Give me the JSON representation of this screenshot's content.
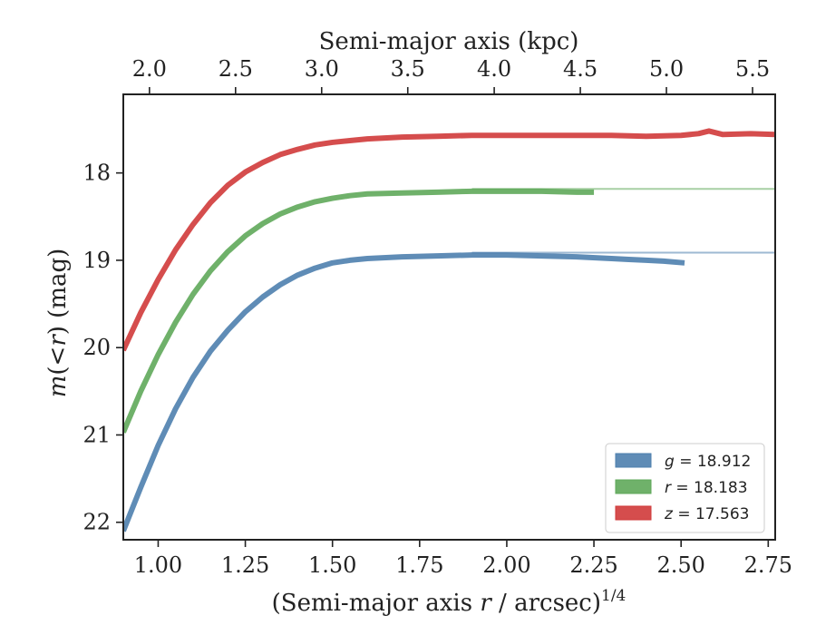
{
  "chart_data": {
    "type": "line",
    "xlabel_prefix": "(Semi-major axis ",
    "xlabel_var": "r",
    "xlabel_suffix": " / arcsec)",
    "xlabel_exp": "1/4",
    "ylabel_m": "m",
    "ylabel_mid": "(<",
    "ylabel_r": "r",
    "ylabel_suffix": ") (mag)",
    "top_xlabel": "Semi-major axis (kpc)",
    "xlim": [
      0.9,
      2.77
    ],
    "ylim": [
      22.2,
      17.1
    ],
    "y_inverted": true,
    "xticks": [
      "1.00",
      "1.25",
      "1.50",
      "1.75",
      "2.00",
      "2.25",
      "2.50",
      "2.75"
    ],
    "xtick_values": [
      1.0,
      1.25,
      1.5,
      1.75,
      2.0,
      2.25,
      2.5,
      2.75
    ],
    "yticks": [
      "18",
      "19",
      "20",
      "21",
      "22"
    ],
    "ytick_values": [
      18,
      19,
      20,
      21,
      22
    ],
    "top_xticks": [
      "2.0",
      "2.5",
      "3.0",
      "3.5",
      "4.0",
      "4.5",
      "5.0",
      "5.5"
    ],
    "top_xtick_values": [
      2.0,
      2.5,
      3.0,
      3.5,
      4.0,
      4.5,
      5.0,
      5.5
    ],
    "top_xtick_positions": [
      0.975,
      1.222,
      1.469,
      1.716,
      1.964,
      2.211,
      2.458,
      2.705
    ],
    "legend_position": "lower-right",
    "series": [
      {
        "key": "g",
        "label_var": "g",
        "label_value": " = 18.912",
        "color": "#4e7fae",
        "model_asymptote": 18.912,
        "x": [
          0.9,
          0.95,
          1.0,
          1.05,
          1.1,
          1.15,
          1.2,
          1.25,
          1.3,
          1.35,
          1.4,
          1.45,
          1.5,
          1.55,
          1.6,
          1.7,
          1.8,
          1.9,
          2.0,
          2.1,
          2.2,
          2.3,
          2.35,
          2.4,
          2.45,
          2.51
        ],
        "y": [
          22.1,
          21.6,
          21.12,
          20.7,
          20.34,
          20.04,
          19.8,
          19.59,
          19.42,
          19.28,
          19.17,
          19.09,
          19.03,
          19.0,
          18.98,
          18.96,
          18.95,
          18.94,
          18.94,
          18.95,
          18.96,
          18.98,
          18.99,
          19.0,
          19.01,
          19.03
        ]
      },
      {
        "key": "r",
        "label_var": "r",
        "label_value": " = 18.183",
        "color": "#5fa85a",
        "model_asymptote": 18.183,
        "x": [
          0.9,
          0.95,
          1.0,
          1.05,
          1.1,
          1.15,
          1.2,
          1.25,
          1.3,
          1.35,
          1.4,
          1.45,
          1.5,
          1.55,
          1.6,
          1.7,
          1.8,
          1.9,
          2.0,
          2.1,
          2.2,
          2.25
        ],
        "y": [
          20.97,
          20.5,
          20.08,
          19.71,
          19.39,
          19.12,
          18.9,
          18.72,
          18.58,
          18.47,
          18.39,
          18.33,
          18.29,
          18.26,
          18.24,
          18.23,
          18.22,
          18.21,
          18.21,
          18.21,
          18.22,
          18.22
        ]
      },
      {
        "key": "z",
        "label_var": "z",
        "label_value": " = 17.563",
        "color": "#d03a3a",
        "model_asymptote": 17.563,
        "x": [
          0.9,
          0.95,
          1.0,
          1.05,
          1.1,
          1.15,
          1.2,
          1.25,
          1.3,
          1.35,
          1.4,
          1.45,
          1.5,
          1.55,
          1.6,
          1.7,
          1.8,
          1.9,
          2.0,
          2.1,
          2.2,
          2.3,
          2.4,
          2.5,
          2.55,
          2.58,
          2.62,
          2.7,
          2.77
        ],
        "y": [
          20.03,
          19.6,
          19.22,
          18.88,
          18.59,
          18.34,
          18.14,
          17.99,
          17.88,
          17.79,
          17.73,
          17.68,
          17.65,
          17.63,
          17.61,
          17.59,
          17.58,
          17.57,
          17.57,
          17.57,
          17.57,
          17.57,
          17.58,
          17.57,
          17.55,
          17.52,
          17.56,
          17.55,
          17.56
        ]
      }
    ]
  }
}
